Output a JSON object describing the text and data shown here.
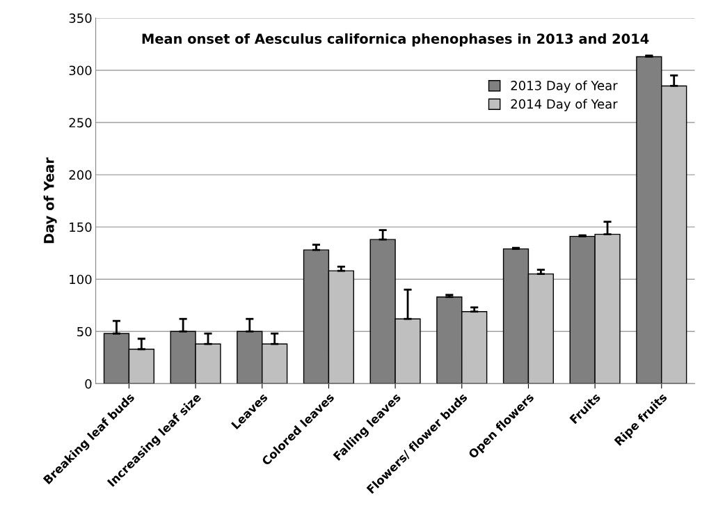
{
  "chart_data": {
    "type": "bar",
    "title": "Mean onset of Aesculus californica phenophases in 2013 and 2014",
    "ylabel": "Day of Year",
    "categories": [
      "Breaking leaf buds",
      "Increasing leaf size",
      "Leaves",
      "Colored leaves",
      "Falling leaves",
      "Flowers/ flower buds",
      "Open flowers",
      "Fruits",
      "Ripe fruits"
    ],
    "series": [
      {
        "name": "2013 Day of Year",
        "color": "#808080",
        "values": [
          48,
          50,
          50,
          128,
          138,
          83,
          129,
          141,
          313
        ],
        "errors": [
          [
            48,
            60
          ],
          [
            50,
            62
          ],
          [
            50,
            62
          ],
          [
            128,
            133
          ],
          [
            138,
            147
          ],
          [
            83,
            85
          ],
          [
            129,
            130
          ],
          [
            141,
            142
          ],
          [
            313,
            314
          ]
        ]
      },
      {
        "name": "2014 Day of Year",
        "color": "#bfbfbf",
        "values": [
          33,
          38,
          38,
          108,
          62,
          69,
          105,
          143,
          285
        ],
        "errors": [
          [
            33,
            43
          ],
          [
            38,
            48
          ],
          [
            38,
            48
          ],
          [
            108,
            112
          ],
          [
            62,
            90
          ],
          [
            69,
            73
          ],
          [
            105,
            109
          ],
          [
            143,
            155
          ],
          [
            285,
            295
          ]
        ]
      }
    ],
    "ylim": [
      0,
      350
    ],
    "yticks": [
      0,
      50,
      100,
      150,
      200,
      250,
      300,
      350
    ],
    "grid": "y",
    "legend": "top right"
  }
}
